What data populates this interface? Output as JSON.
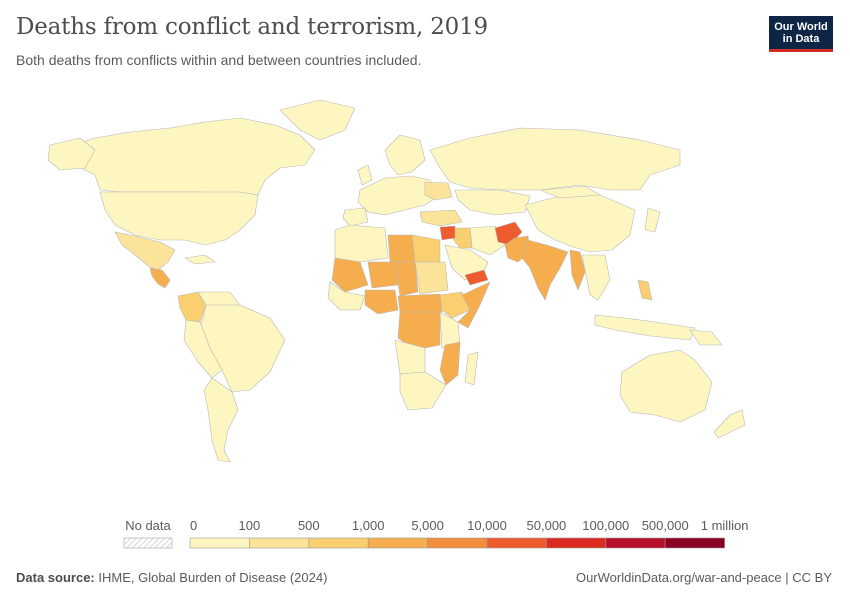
{
  "title": "Deaths from conflict and terrorism, 2019",
  "subtitle": "Both deaths from conflicts within and between countries included.",
  "logo": {
    "line1": "Our World",
    "line2": "in Data",
    "bg_color": "#0f2546",
    "accent_color": "#d42b21"
  },
  "legend": {
    "no_data_label": "No data",
    "tick_labels": [
      "0",
      "100",
      "500",
      "1,000",
      "5,000",
      "10,000",
      "50,000",
      "100,000",
      "500,000",
      "1 million"
    ],
    "bin_colors": [
      "#fdf6c1",
      "#fbe49a",
      "#f9cf6f",
      "#f6ad4e",
      "#f48c3d",
      "#ee5b2f",
      "#db2a22",
      "#b8102a",
      "#8a0022"
    ]
  },
  "footer": {
    "source_label": "Data source:",
    "source_text": "IHME, Global Burden of Disease (2024)",
    "url_text": "OurWorldinData.org/war-and-peace | CC BY"
  },
  "map_data": {
    "countries": [
      {
        "name": "Canada",
        "bin": 0
      },
      {
        "name": "United States",
        "bin": 0
      },
      {
        "name": "Mexico",
        "bin": 1
      },
      {
        "name": "Central America",
        "bin": 3
      },
      {
        "name": "Colombia",
        "bin": 2
      },
      {
        "name": "Brazil",
        "bin": 0
      },
      {
        "name": "Russia",
        "bin": 0
      },
      {
        "name": "China",
        "bin": 0
      },
      {
        "name": "Turkey",
        "bin": 1
      },
      {
        "name": "Syria",
        "bin": 5
      },
      {
        "name": "Iraq",
        "bin": 2
      },
      {
        "name": "Afghanistan",
        "bin": 5
      },
      {
        "name": "Pakistan",
        "bin": 3
      },
      {
        "name": "India",
        "bin": 3
      },
      {
        "name": "Myanmar",
        "bin": 3
      },
      {
        "name": "Yemen",
        "bin": 5
      },
      {
        "name": "Libya",
        "bin": 3
      },
      {
        "name": "Egypt",
        "bin": 2
      },
      {
        "name": "Sudan",
        "bin": 1
      },
      {
        "name": "Mali",
        "bin": 3
      },
      {
        "name": "Niger",
        "bin": 3
      },
      {
        "name": "Nigeria",
        "bin": 3
      },
      {
        "name": "DR Congo",
        "bin": 3
      },
      {
        "name": "Somalia",
        "bin": 3
      },
      {
        "name": "Ethiopia",
        "bin": 2
      },
      {
        "name": "Mozambique",
        "bin": 3
      },
      {
        "name": "Philippines",
        "bin": 2
      },
      {
        "name": "Australia",
        "bin": 0
      }
    ]
  }
}
